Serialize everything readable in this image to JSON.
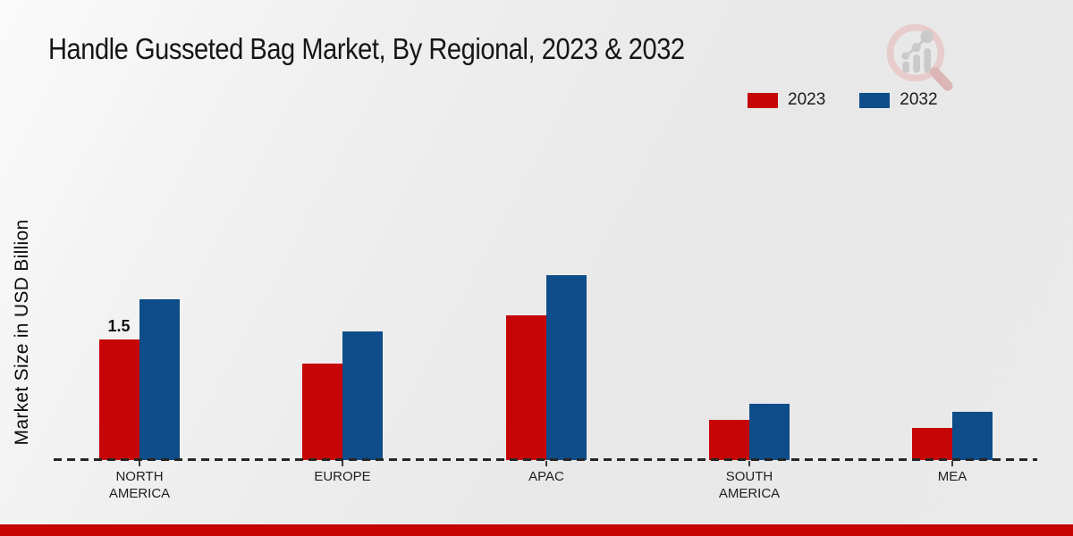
{
  "title": "Handle Gusseted Bag Market, By Regional, 2023 & 2032",
  "y_axis_label": "Market Size in USD Billion",
  "colors": {
    "series_2023": "#c60606",
    "series_2032": "#0e4d8a",
    "footer_bar": "#c60404",
    "baseline": "#262626"
  },
  "logo": {
    "name": "market-research-magnifier-logo"
  },
  "chart_data": {
    "type": "bar",
    "title": "Handle Gusseted Bag Market, By Regional, 2023 & 2032",
    "xlabel": "",
    "ylabel": "Market Size in USD Billion",
    "categories": [
      "NORTH AMERICA",
      "EUROPE",
      "APAC",
      "SOUTH AMERICA",
      "MEA"
    ],
    "series": [
      {
        "name": "2023",
        "color": "#c60606",
        "values": [
          1.5,
          1.2,
          1.8,
          0.5,
          0.4
        ]
      },
      {
        "name": "2032",
        "color": "#0e4d8a",
        "values": [
          2.0,
          1.6,
          2.3,
          0.7,
          0.6
        ]
      }
    ],
    "data_labels": [
      {
        "series_index": 0,
        "category_index": 0,
        "text": "1.5"
      }
    ],
    "ylim": [
      0,
      2.5
    ],
    "grid": false,
    "y_axis_ticks_visible": false,
    "legend_position": "top-right",
    "baseline_style": "dashed"
  }
}
